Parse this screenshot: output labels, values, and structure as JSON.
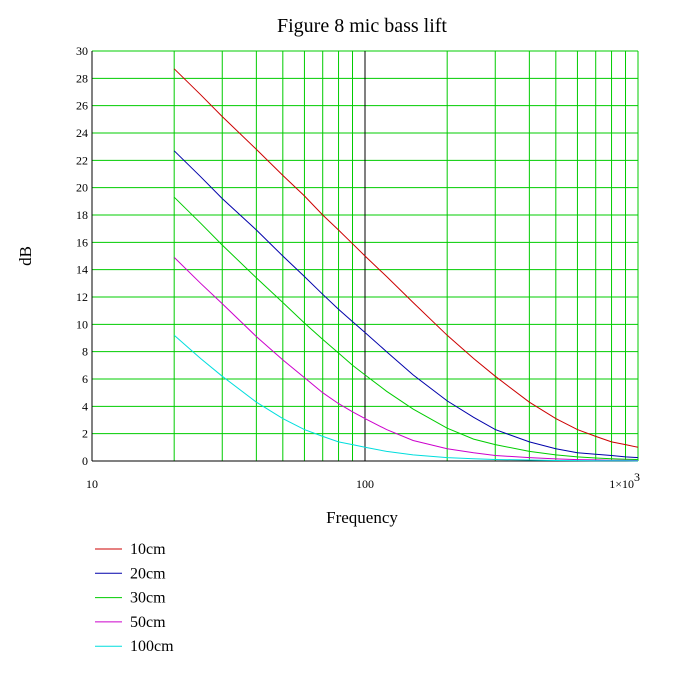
{
  "chart_data": {
    "type": "line",
    "title": "Figure 8 mic bass lift",
    "xlabel": "Frequency",
    "ylabel": "dB",
    "xscale": "log",
    "xlim": [
      10,
      1000
    ],
    "ylim": [
      0,
      30
    ],
    "x_tick_labels": [
      {
        "value": 10,
        "label": "10"
      },
      {
        "value": 100,
        "label": "100"
      },
      {
        "value": 1000,
        "label": "1×10",
        "sup": "3"
      }
    ],
    "y_ticks": [
      0,
      2,
      4,
      6,
      8,
      10,
      12,
      14,
      16,
      18,
      20,
      22,
      24,
      26,
      28,
      30
    ],
    "grid": true,
    "grid_color": "#00cc00",
    "highlight_gridline_x": 100,
    "legend_position": "bottom-left",
    "x": [
      20,
      25,
      30,
      40,
      50,
      60,
      70,
      80,
      90,
      100,
      120,
      150,
      200,
      250,
      300,
      400,
      500,
      600,
      700,
      800,
      900,
      1000
    ],
    "series": [
      {
        "name": "10cm",
        "color": "#cc0000",
        "values": [
          28.7,
          26.8,
          25.2,
          22.8,
          20.9,
          19.4,
          18.0,
          16.9,
          15.9,
          15.0,
          13.5,
          11.6,
          9.2,
          7.5,
          6.2,
          4.3,
          3.1,
          2.3,
          1.8,
          1.4,
          1.2,
          1.0
        ]
      },
      {
        "name": "20cm",
        "color": "#0000aa",
        "values": [
          22.7,
          20.8,
          19.2,
          16.9,
          15.0,
          13.5,
          12.2,
          11.1,
          10.2,
          9.4,
          8.0,
          6.3,
          4.4,
          3.2,
          2.3,
          1.4,
          0.9,
          0.6,
          0.5,
          0.4,
          0.3,
          0.25
        ]
      },
      {
        "name": "30cm",
        "color": "#00cc00",
        "values": [
          19.3,
          17.4,
          15.8,
          13.4,
          11.6,
          10.1,
          8.9,
          7.9,
          7.0,
          6.3,
          5.1,
          3.8,
          2.4,
          1.6,
          1.2,
          0.7,
          0.45,
          0.3,
          0.22,
          0.17,
          0.13,
          0.1
        ]
      },
      {
        "name": "50cm",
        "color": "#cc00cc",
        "values": [
          14.9,
          13.0,
          11.5,
          9.1,
          7.4,
          6.1,
          5.0,
          4.2,
          3.6,
          3.1,
          2.3,
          1.5,
          0.9,
          0.6,
          0.4,
          0.25,
          0.15,
          0.1,
          0.08,
          0.06,
          0.05,
          0.04
        ]
      },
      {
        "name": "100cm",
        "color": "#00dddd",
        "values": [
          9.2,
          7.5,
          6.2,
          4.3,
          3.1,
          2.3,
          1.8,
          1.4,
          1.2,
          1.0,
          0.7,
          0.45,
          0.25,
          0.16,
          0.11,
          0.07,
          0.04,
          0.03,
          0.02,
          0.015,
          0.012,
          0.01
        ]
      }
    ]
  }
}
